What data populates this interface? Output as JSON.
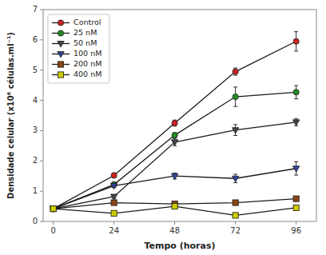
{
  "chart_data": {
    "type": "line",
    "xlabel": "Tempo (horas)",
    "ylabel": "Densidade celular (x10⁶ células.ml⁻¹)",
    "x": [
      0,
      24,
      48,
      72,
      96
    ],
    "xlim": [
      -4,
      104
    ],
    "xticks": [
      0,
      24,
      48,
      72,
      96
    ],
    "ylim": [
      0,
      7
    ],
    "yticks": [
      0,
      1,
      2,
      3,
      4,
      5,
      6,
      7
    ],
    "grid": false,
    "legend": "upper-left",
    "series": [
      {
        "name": "Control",
        "color": "#cc2222",
        "marker": "circle",
        "values": [
          0.42,
          1.52,
          3.25,
          4.95,
          5.95
        ],
        "errors": [
          0.04,
          0.08,
          0.1,
          0.12,
          0.32
        ]
      },
      {
        "name": "25 nM",
        "color": "#228B22",
        "marker": "circle",
        "values": [
          0.42,
          1.22,
          2.85,
          4.12,
          4.27
        ],
        "errors": [
          0.04,
          0.08,
          0.08,
          0.32,
          0.22
        ]
      },
      {
        "name": "50 nM",
        "color": "#444444",
        "marker": "triangle-down",
        "values": [
          0.42,
          0.82,
          2.62,
          3.02,
          3.28
        ],
        "errors": [
          0.03,
          0.06,
          0.12,
          0.18,
          0.12
        ]
      },
      {
        "name": "100 nM",
        "color": "#334499",
        "marker": "triangle-down",
        "values": [
          0.42,
          1.18,
          1.5,
          1.42,
          1.75
        ],
        "errors": [
          0.03,
          0.06,
          0.1,
          0.14,
          0.22
        ]
      },
      {
        "name": "200 nM",
        "color": "#8B4513",
        "marker": "square",
        "values": [
          0.42,
          0.62,
          0.58,
          0.62,
          0.75
        ],
        "errors": [
          0.03,
          0.04,
          0.05,
          0.05,
          0.07
        ]
      },
      {
        "name": "400 nM",
        "color": "#cccc00",
        "marker": "square",
        "values": [
          0.42,
          0.27,
          0.5,
          0.2,
          0.45
        ],
        "errors": [
          0.03,
          0.03,
          0.04,
          0.03,
          0.05
        ]
      }
    ]
  }
}
